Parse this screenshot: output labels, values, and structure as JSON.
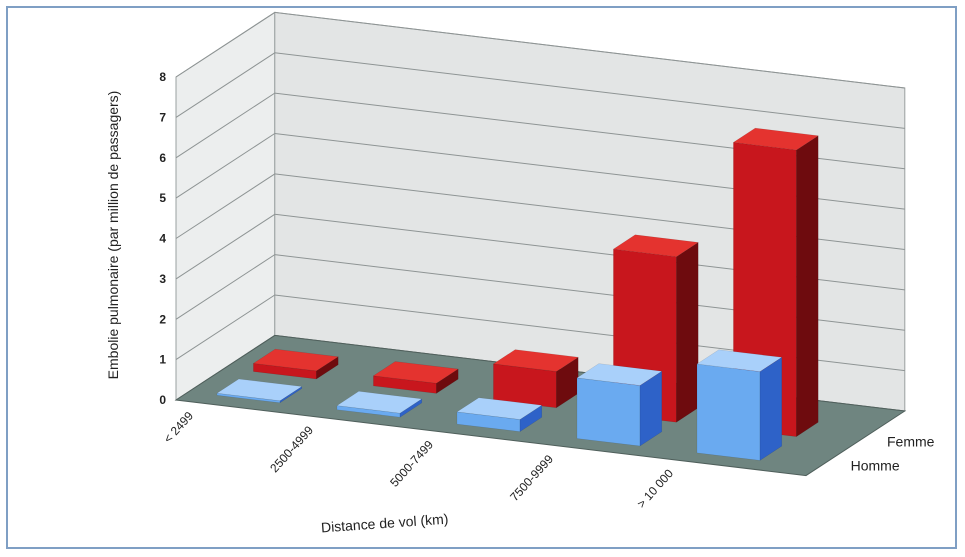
{
  "chart_data": {
    "type": "bar",
    "title": "",
    "xlabel": "Distance de vol (km)",
    "ylabel": "Embolie pulmonaire (par million de passagers)",
    "ylim": [
      0,
      8
    ],
    "yticks": [
      "0",
      "1",
      "2",
      "3",
      "4",
      "5",
      "6",
      "7",
      "8"
    ],
    "categories": [
      "< 2499",
      "2500-4999",
      "5000-7499",
      "7500-9999",
      "> 10 000"
    ],
    "series": [
      {
        "name": "Femme",
        "values": [
          0.2,
          0.25,
          0.9,
          4.1,
          7.1
        ]
      },
      {
        "name": "Homme",
        "values": [
          0.05,
          0.1,
          0.3,
          1.5,
          2.2
        ]
      }
    ],
    "grid": true,
    "colors": {
      "Femme_front": "#c8161d",
      "Femme_side": "#6e0b0e",
      "Femme_top": "#e4332f",
      "Homme_front": "#6aaaf0",
      "Homme_side": "#2e62c8",
      "Homme_top": "#a9d0fa",
      "floor": "#6f8580",
      "wall": "#e3e5e5"
    }
  }
}
